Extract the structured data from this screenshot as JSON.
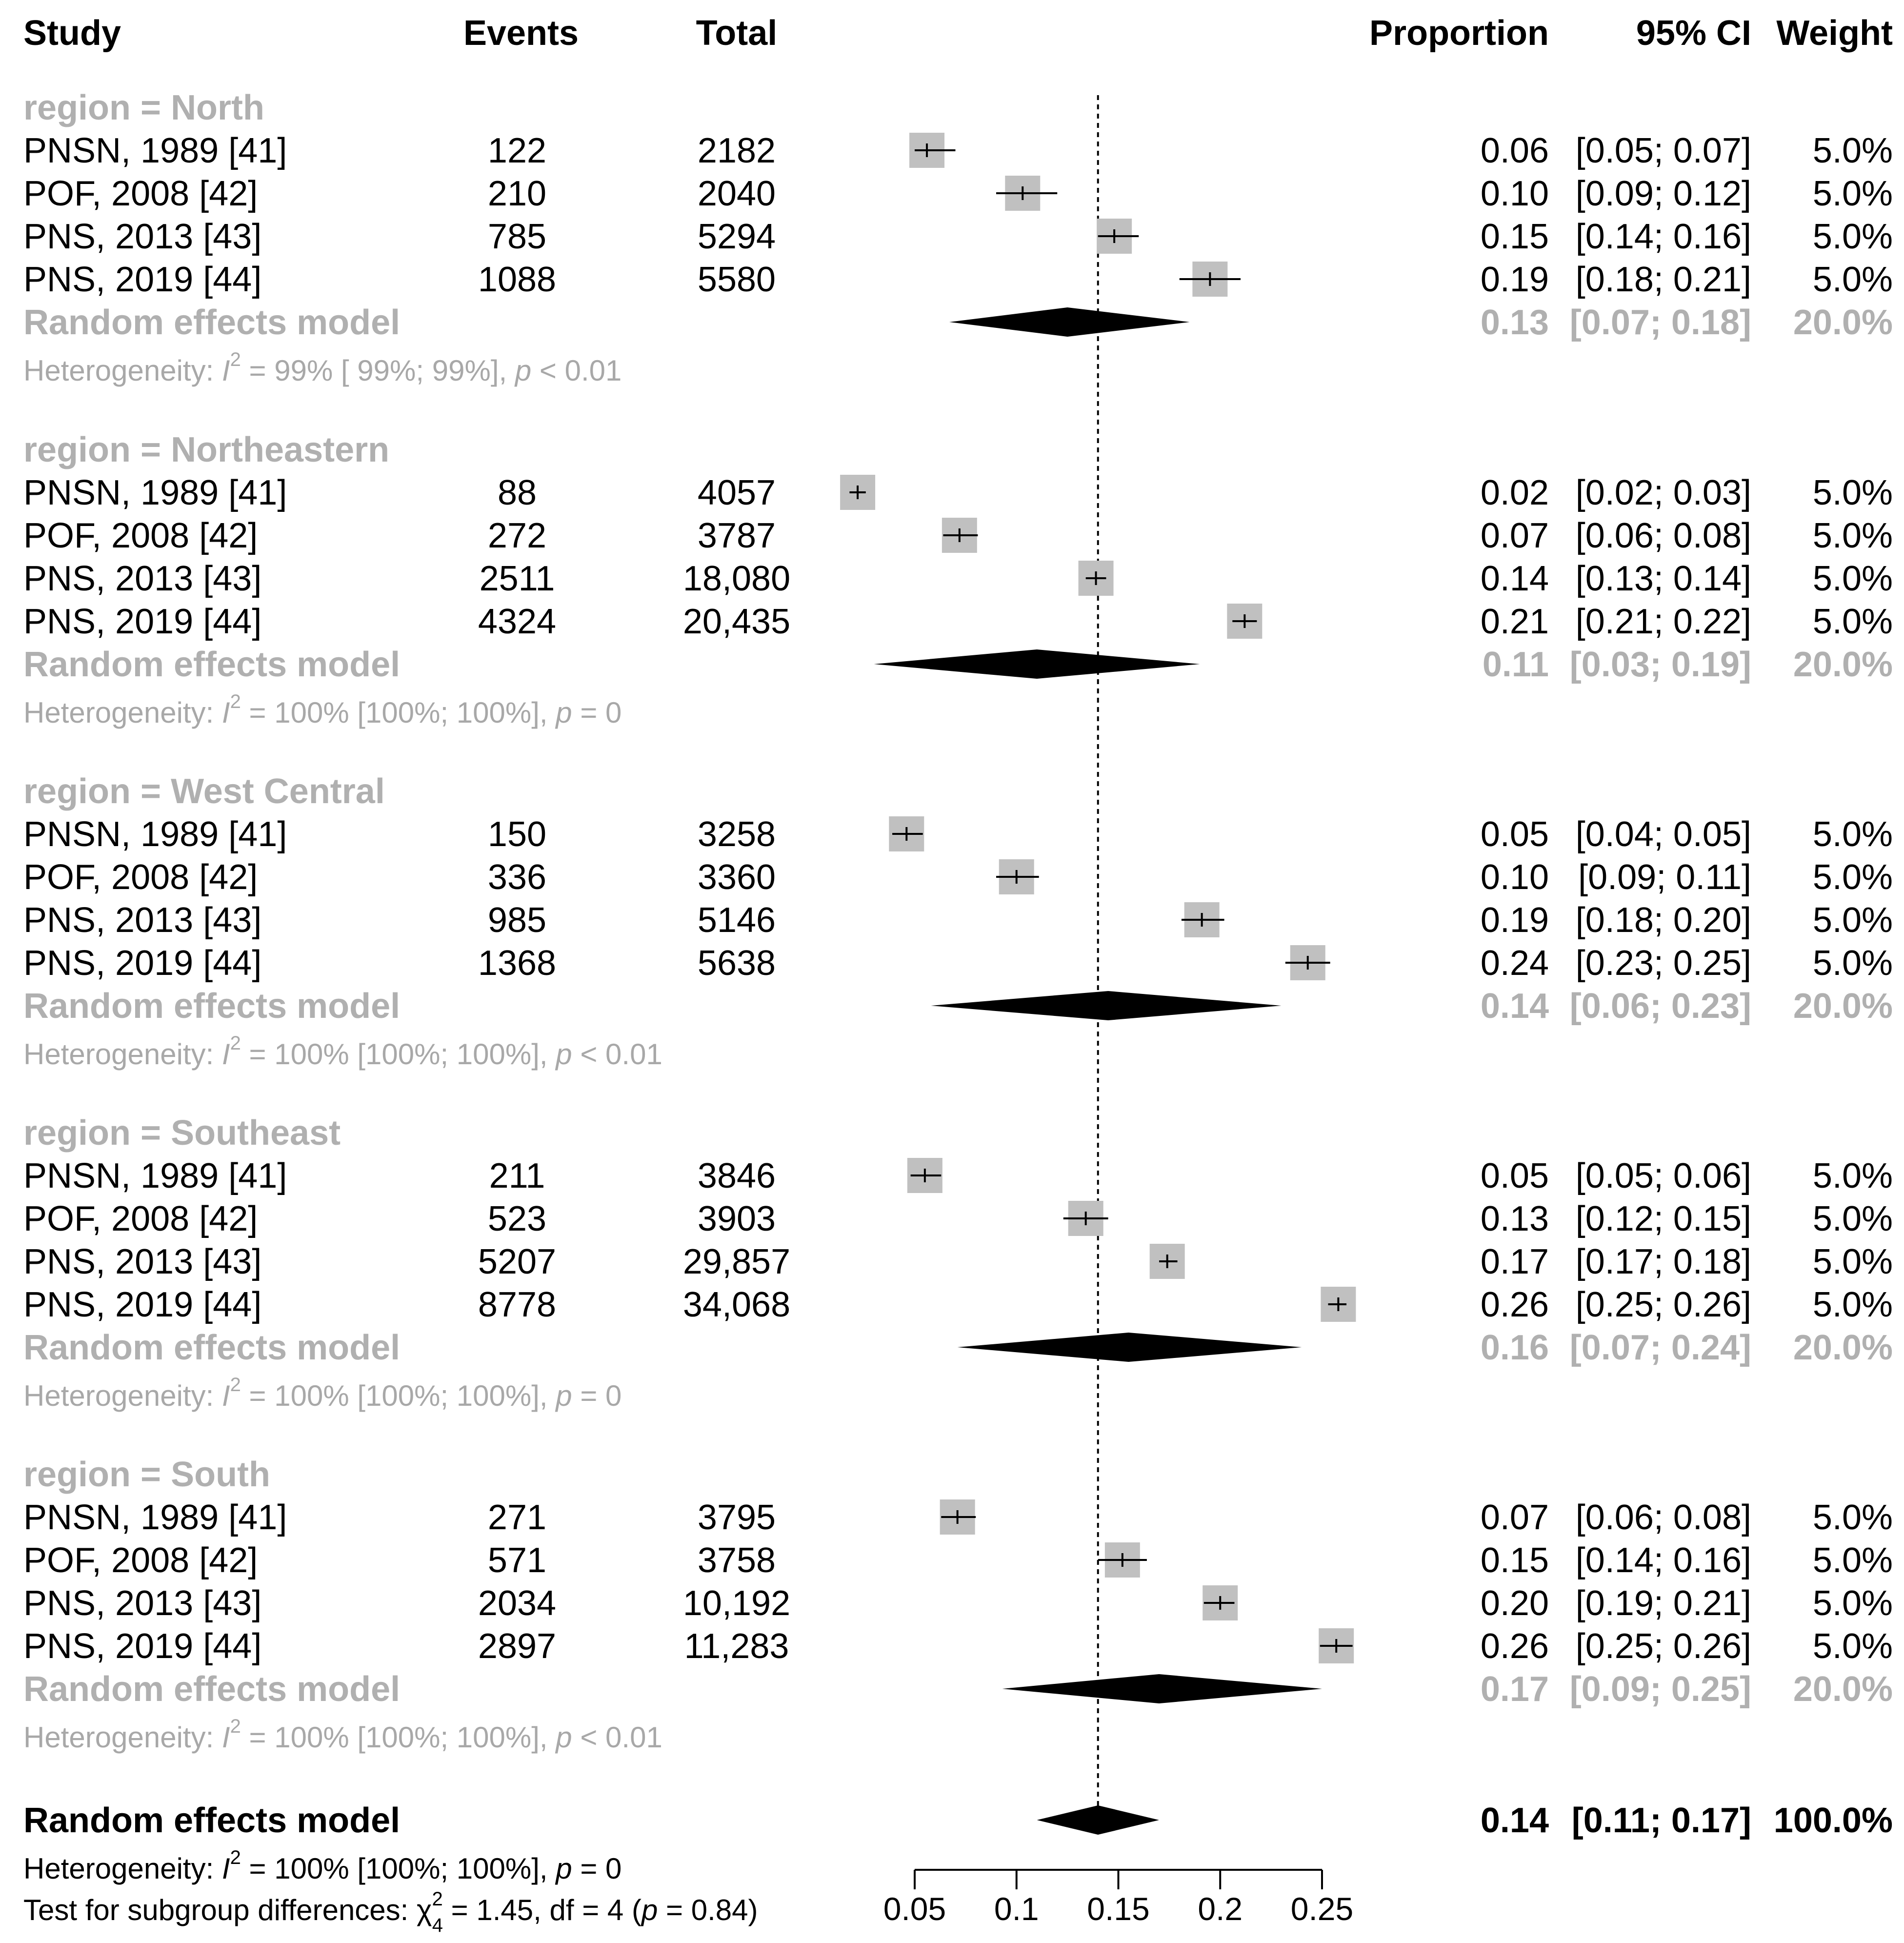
{
  "chart_data": {
    "type": "forest",
    "columns": {
      "study": "Study",
      "events": "Events",
      "total": "Total",
      "proportion": "Proportion",
      "ci": "95% CI",
      "weight": "Weight"
    },
    "xaxis": {
      "ticks": [
        "0.05",
        "0.1",
        "0.15",
        "0.2",
        "0.25"
      ],
      "range": [
        0.05,
        0.25
      ],
      "reference": 0.14
    },
    "groups": [
      {
        "label": "region = North",
        "studies": [
          {
            "study": "PNSN, 1989 [41]",
            "events": "122",
            "total": "2182",
            "prop": "0.06",
            "ci": "[0.05; 0.07]",
            "weight": "5.0%",
            "est": 0.056,
            "lo": 0.05,
            "hi": 0.07
          },
          {
            "study": "POF, 2008 [42]",
            "events": "210",
            "total": "2040",
            "prop": "0.10",
            "ci": "[0.09; 0.12]",
            "weight": "5.0%",
            "est": 0.103,
            "lo": 0.09,
            "hi": 0.12
          },
          {
            "study": "PNS, 2013 [43]",
            "events": "785",
            "total": "5294",
            "prop": "0.15",
            "ci": "[0.14; 0.16]",
            "weight": "5.0%",
            "est": 0.148,
            "lo": 0.14,
            "hi": 0.16
          },
          {
            "study": "PNS, 2019 [44]",
            "events": "1088",
            "total": "5580",
            "prop": "0.19",
            "ci": "[0.18; 0.21]",
            "weight": "5.0%",
            "est": 0.195,
            "lo": 0.18,
            "hi": 0.21
          }
        ],
        "random": {
          "label": "Random effects model",
          "prop": "0.13",
          "ci": "[0.07; 0.18]",
          "weight": "20.0%",
          "est": 0.125,
          "lo": 0.067,
          "hi": 0.185
        },
        "het": {
          "prefix": "Heterogeneity: ",
          "i2": "I",
          "rest": " = 99% [ 99%; 99%], ",
          "p": "p",
          "pval": " < 0.01"
        }
      },
      {
        "label": "region = Northeastern",
        "studies": [
          {
            "study": "PNSN, 1989 [41]",
            "events": "88",
            "total": "4057",
            "prop": "0.02",
            "ci": "[0.02; 0.03]",
            "weight": "5.0%",
            "est": 0.022,
            "lo": 0.018,
            "hi": 0.026
          },
          {
            "study": "POF, 2008 [42]",
            "events": "272",
            "total": "3787",
            "prop": "0.07",
            "ci": "[0.06; 0.08]",
            "weight": "5.0%",
            "est": 0.072,
            "lo": 0.064,
            "hi": 0.081
          },
          {
            "study": "PNS, 2013 [43]",
            "events": "2511",
            "total": "18,080",
            "prop": "0.14",
            "ci": "[0.13; 0.14]",
            "weight": "5.0%",
            "est": 0.139,
            "lo": 0.134,
            "hi": 0.144
          },
          {
            "study": "PNS, 2019 [44]",
            "events": "4324",
            "total": "20,435",
            "prop": "0.21",
            "ci": "[0.21; 0.22]",
            "weight": "5.0%",
            "est": 0.212,
            "lo": 0.206,
            "hi": 0.218
          }
        ],
        "random": {
          "label": "Random effects model",
          "prop": "0.11",
          "ci": "[0.03; 0.19]",
          "weight": "20.0%",
          "est": 0.11,
          "lo": 0.03,
          "hi": 0.19
        },
        "het": {
          "prefix": "Heterogeneity: ",
          "i2": "I",
          "rest": " = 100% [100%; 100%], ",
          "p": "p",
          "pval": " = 0"
        }
      },
      {
        "label": "region = West Central",
        "studies": [
          {
            "study": "PNSN, 1989 [41]",
            "events": "150",
            "total": "3258",
            "prop": "0.05",
            "ci": "[0.04; 0.05]",
            "weight": "5.0%",
            "est": 0.046,
            "lo": 0.039,
            "hi": 0.054
          },
          {
            "study": "POF, 2008 [42]",
            "events": "336",
            "total": "3360",
            "prop": "0.10",
            "ci": "[0.09; 0.11]",
            "weight": "5.0%",
            "est": 0.1,
            "lo": 0.09,
            "hi": 0.111
          },
          {
            "study": "PNS, 2013 [43]",
            "events": "985",
            "total": "5146",
            "prop": "0.19",
            "ci": "[0.18; 0.20]",
            "weight": "5.0%",
            "est": 0.191,
            "lo": 0.181,
            "hi": 0.202
          },
          {
            "study": "PNS, 2019 [44]",
            "events": "1368",
            "total": "5638",
            "prop": "0.24",
            "ci": "[0.23; 0.25]",
            "weight": "5.0%",
            "est": 0.243,
            "lo": 0.232,
            "hi": 0.254
          }
        ],
        "random": {
          "label": "Random effects model",
          "prop": "0.14",
          "ci": "[0.06; 0.23]",
          "weight": "20.0%",
          "est": 0.145,
          "lo": 0.058,
          "hi": 0.23
        },
        "het": {
          "prefix": "Heterogeneity: ",
          "i2": "I",
          "rest": " = 100% [100%; 100%], ",
          "p": "p",
          "pval": " < 0.01"
        }
      },
      {
        "label": "region = Southeast",
        "studies": [
          {
            "study": "PNSN, 1989 [41]",
            "events": "211",
            "total": "3846",
            "prop": "0.05",
            "ci": "[0.05; 0.06]",
            "weight": "5.0%",
            "est": 0.055,
            "lo": 0.048,
            "hi": 0.063
          },
          {
            "study": "POF, 2008 [42]",
            "events": "523",
            "total": "3903",
            "prop": "0.13",
            "ci": "[0.12; 0.15]",
            "weight": "5.0%",
            "est": 0.134,
            "lo": 0.123,
            "hi": 0.145
          },
          {
            "study": "PNS, 2013 [43]",
            "events": "5207",
            "total": "29,857",
            "prop": "0.17",
            "ci": "[0.17; 0.18]",
            "weight": "5.0%",
            "est": 0.174,
            "lo": 0.17,
            "hi": 0.179
          },
          {
            "study": "PNS, 2019 [44]",
            "events": "8778",
            "total": "34,068",
            "prop": "0.26",
            "ci": "[0.25; 0.26]",
            "weight": "5.0%",
            "est": 0.258,
            "lo": 0.253,
            "hi": 0.262
          }
        ],
        "random": {
          "label": "Random effects model",
          "prop": "0.16",
          "ci": "[0.07; 0.24]",
          "weight": "20.0%",
          "est": 0.155,
          "lo": 0.071,
          "hi": 0.24
        },
        "het": {
          "prefix": "Heterogeneity: ",
          "i2": "I",
          "rest": " = 100% [100%; 100%], ",
          "p": "p",
          "pval": " = 0"
        }
      },
      {
        "label": "region = South",
        "studies": [
          {
            "study": "PNSN, 1989 [41]",
            "events": "271",
            "total": "3795",
            "prop": "0.07",
            "ci": "[0.06; 0.08]",
            "weight": "5.0%",
            "est": 0.071,
            "lo": 0.063,
            "hi": 0.08
          },
          {
            "study": "POF, 2008 [42]",
            "events": "571",
            "total": "3758",
            "prop": "0.15",
            "ci": "[0.14; 0.16]",
            "weight": "5.0%",
            "est": 0.152,
            "lo": 0.14,
            "hi": 0.164
          },
          {
            "study": "PNS, 2013 [43]",
            "events": "2034",
            "total": "10,192",
            "prop": "0.20",
            "ci": "[0.19; 0.21]",
            "weight": "5.0%",
            "est": 0.2,
            "lo": 0.192,
            "hi": 0.207
          },
          {
            "study": "PNS, 2019 [44]",
            "events": "2897",
            "total": "11,283",
            "prop": "0.26",
            "ci": "[0.25; 0.26]",
            "weight": "5.0%",
            "est": 0.257,
            "lo": 0.249,
            "hi": 0.265
          }
        ],
        "random": {
          "label": "Random effects model",
          "prop": "0.17",
          "ci": "[0.09; 0.25]",
          "weight": "20.0%",
          "est": 0.17,
          "lo": 0.093,
          "hi": 0.25
        },
        "het": {
          "prefix": "Heterogeneity: ",
          "i2": "I",
          "rest": " = 100% [100%; 100%], ",
          "p": "p",
          "pval": " < 0.01"
        }
      }
    ],
    "overall": {
      "label": "Random effects model",
      "prop": "0.14",
      "ci": "[0.11; 0.17]",
      "weight": "100.0%",
      "est": 0.14,
      "lo": 0.11,
      "hi": 0.17,
      "het": {
        "prefix": "Heterogeneity: ",
        "i2": "I",
        "rest": " = 100% [100%; 100%], ",
        "p": "p",
        "pval": " = 0"
      },
      "subgroup": {
        "prefix": "Test for subgroup differences: ",
        "chi": "χ",
        "sub": "4",
        "rest": " = 1.45, df = 4 (",
        "p": "p",
        "pval": " = 0.84)"
      }
    },
    "colors": {
      "square": "#c0c0c0",
      "diamond": "#000000",
      "subgroup_text": "#b0b0b0",
      "text": "#000000"
    }
  }
}
